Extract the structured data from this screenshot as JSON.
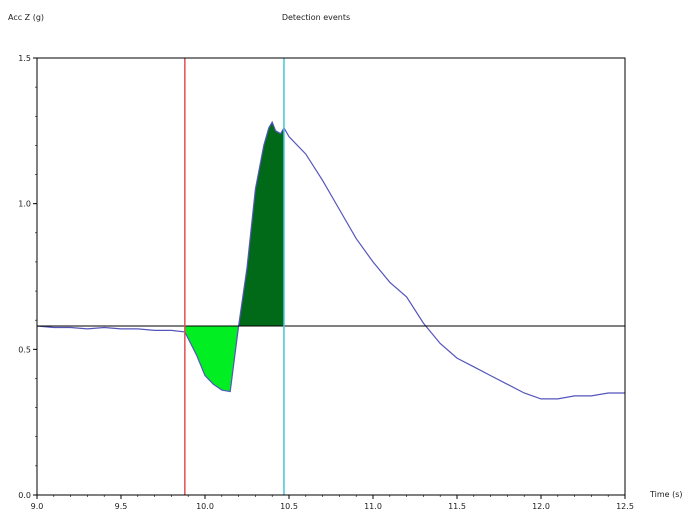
{
  "chart_data": {
    "type": "line",
    "title": "Detection events",
    "ylabel": "Acc Z (g)",
    "xlabel": "Time (s)",
    "xlim": [
      9.0,
      12.5
    ],
    "ylim": [
      0.0,
      1.5
    ],
    "xticks": [
      "9.0",
      "9.5",
      "10.0",
      "10.5",
      "11.0",
      "11.5",
      "12.0",
      "12.5"
    ],
    "yticks": [
      "0.0",
      "0.5",
      "1.0",
      "1.5"
    ],
    "baseline": 0.58,
    "markers": [
      {
        "x": 9.88,
        "color": "#e05050"
      },
      {
        "x": 10.47,
        "color": "#40c8d8"
      }
    ],
    "series": [
      {
        "color": "#5555bb",
        "x": [
          9.0,
          9.1,
          9.2,
          9.3,
          9.4,
          9.5,
          9.6,
          9.7,
          9.8,
          9.88,
          9.95,
          10.0,
          10.05,
          10.1,
          10.15,
          10.2,
          10.25,
          10.3,
          10.35,
          10.38,
          10.4,
          10.42,
          10.45,
          10.47,
          10.5,
          10.6,
          10.7,
          10.8,
          10.9,
          11.0,
          11.1,
          11.2,
          11.3,
          11.4,
          11.5,
          11.6,
          11.7,
          11.8,
          11.9,
          12.0,
          12.1,
          12.2,
          12.3,
          12.4,
          12.5
        ],
        "y": [
          0.58,
          0.575,
          0.575,
          0.57,
          0.575,
          0.57,
          0.57,
          0.565,
          0.565,
          0.56,
          0.48,
          0.41,
          0.38,
          0.36,
          0.355,
          0.58,
          0.78,
          1.05,
          1.2,
          1.26,
          1.28,
          1.25,
          1.24,
          1.26,
          1.23,
          1.17,
          1.08,
          0.98,
          0.88,
          0.8,
          0.73,
          0.68,
          0.59,
          0.52,
          0.47,
          0.44,
          0.41,
          0.38,
          0.35,
          0.33,
          0.33,
          0.34,
          0.34,
          0.35,
          0.35
        ]
      }
    ],
    "fills": [
      {
        "x_from": 9.88,
        "x_to": 10.2,
        "color": "#00ee22"
      },
      {
        "x_from": 10.2,
        "x_to": 10.47,
        "color": "#006a18"
      }
    ]
  }
}
